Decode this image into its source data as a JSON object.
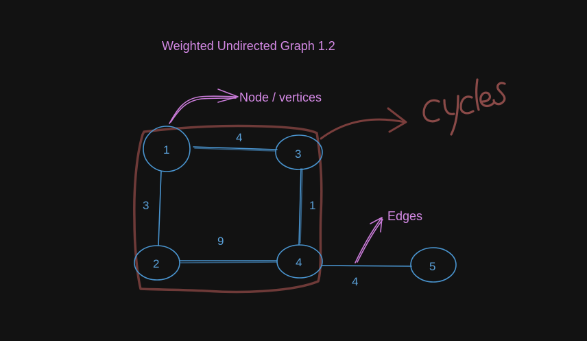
{
  "title": "Weighted Undirected Graph 1.2",
  "annotations": {
    "nodes_label": "Node / vertices",
    "edges_label": "Edges",
    "cycles_label": "cycles"
  },
  "graph": {
    "nodes": [
      {
        "id": "1",
        "label": "1"
      },
      {
        "id": "2",
        "label": "2"
      },
      {
        "id": "3",
        "label": "3"
      },
      {
        "id": "4",
        "label": "4"
      },
      {
        "id": "5",
        "label": "5"
      }
    ],
    "edges": [
      {
        "from": "1",
        "to": "3",
        "weight": "4"
      },
      {
        "from": "1",
        "to": "2",
        "weight": "3"
      },
      {
        "from": "3",
        "to": "4",
        "weight": "1"
      },
      {
        "from": "2",
        "to": "4",
        "weight": "9"
      },
      {
        "from": "4",
        "to": "5",
        "weight": "4"
      }
    ],
    "cycle_nodes": [
      "1",
      "3",
      "4",
      "2"
    ]
  },
  "colors": {
    "background": "#121212",
    "annotation": "#d58ae6",
    "graph": "#4a95d0",
    "cycle": "#6e3a38"
  }
}
